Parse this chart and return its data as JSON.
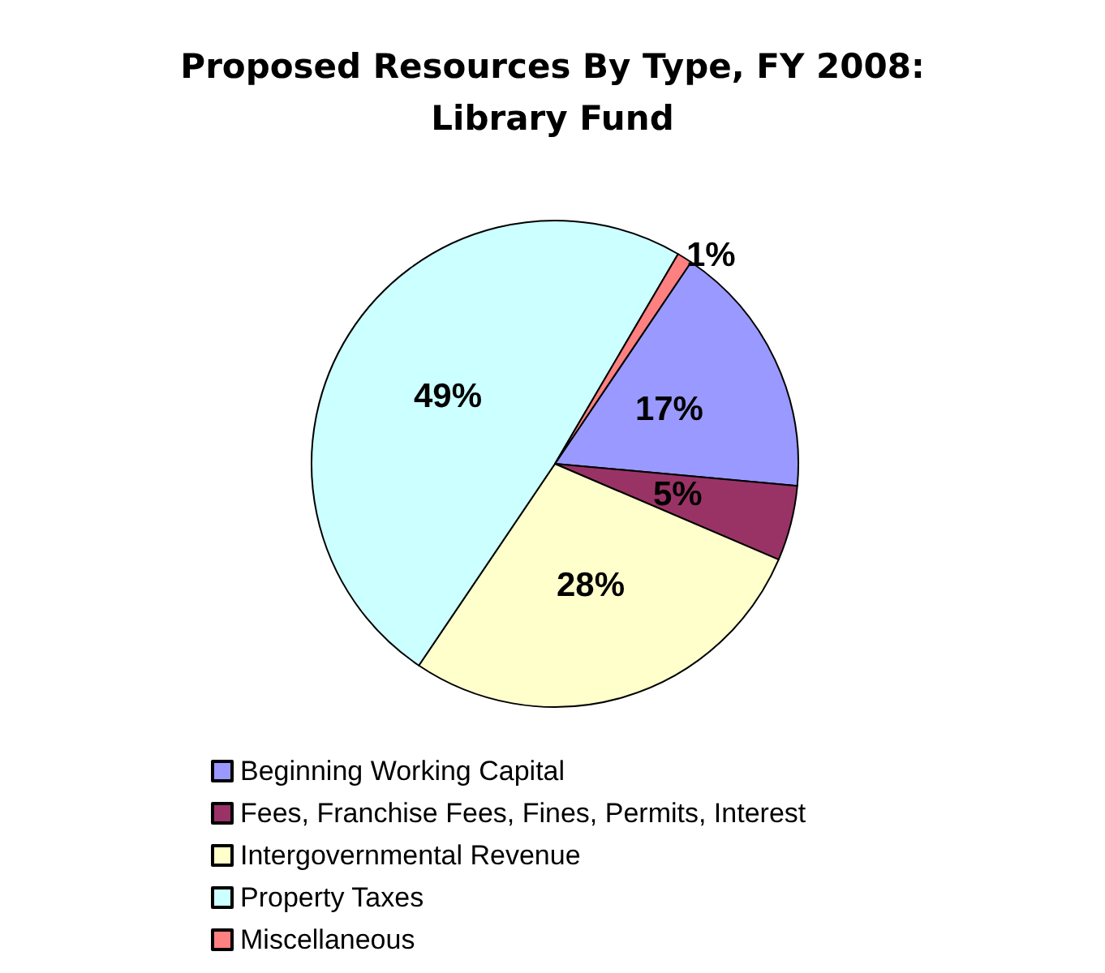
{
  "chart_data": {
    "type": "pie",
    "title": "Proposed Resources By Type, FY 2008:\nLibrary Fund",
    "categories": [
      "Beginning Working Capital",
      "Fees, Franchise Fees, Fines, Permits, Interest",
      "Intergovernmental Revenue",
      "Property Taxes",
      "Miscellaneous"
    ],
    "values": [
      17,
      5,
      28,
      49,
      1
    ],
    "value_labels": [
      "17%",
      "5%",
      "28%",
      "49%",
      "1%"
    ],
    "colors": [
      "#9999ff",
      "#993366",
      "#ffffcc",
      "#ccffff",
      "#ff8080"
    ],
    "legend": "bottom"
  }
}
